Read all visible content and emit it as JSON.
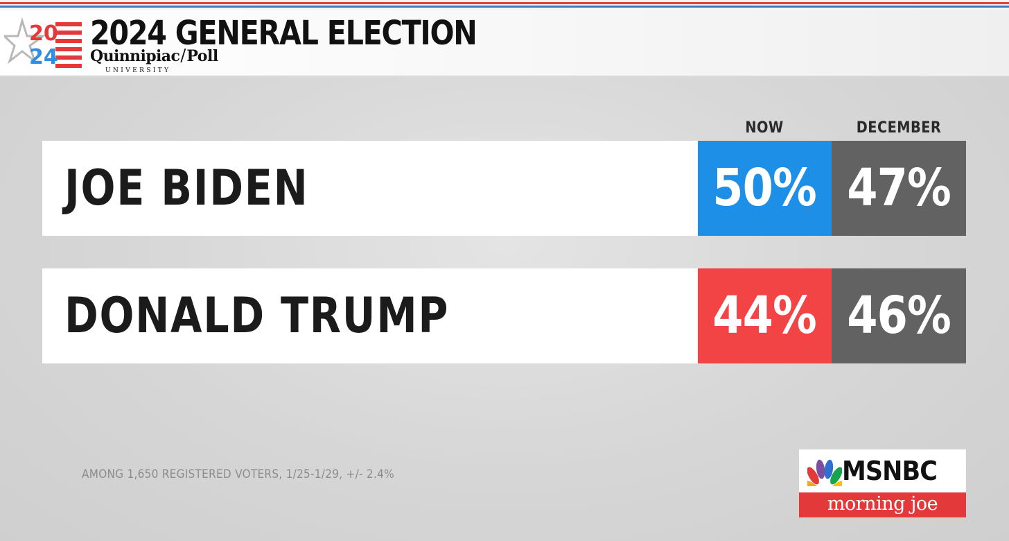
{
  "header": {
    "logo_year_top": "20",
    "logo_year_bottom": "24",
    "title": "2024 GENERAL ELECTION",
    "poll_name": "Quinnipiac",
    "poll_word": "Poll",
    "poll_sub": "UNIVERSITY"
  },
  "columns": {
    "now": "NOW",
    "december": "DECEMBER"
  },
  "candidates": [
    {
      "name": "JOE BIDEN",
      "now": "50%",
      "december": "47%",
      "now_color": "#1e8fe6"
    },
    {
      "name": "DONALD TRUMP",
      "now": "44%",
      "december": "46%",
      "now_color": "#f24444"
    }
  ],
  "colors": {
    "december_cell": "#626262",
    "biden_blue": "#1e8fe6",
    "trump_red": "#f24444"
  },
  "footnote": "AMONG 1,650 REGISTERED VOTERS, 1/25-1/29, +/- 2.4%",
  "network": {
    "name": "MSNBC",
    "show": "morning joe"
  },
  "icons": {
    "logo": "star-flag-icon",
    "network": "peacock-icon"
  }
}
